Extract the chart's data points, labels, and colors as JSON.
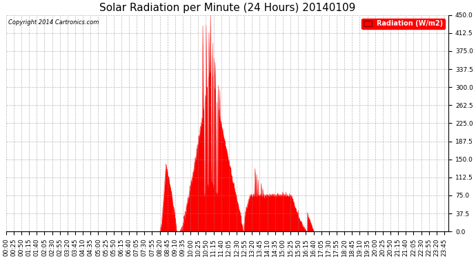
{
  "title": "Solar Radiation per Minute (24 Hours) 20140109",
  "copyright_text": "Copyright 2014 Cartronics.com",
  "legend_label": "Radiation (W/m2)",
  "fill_color": "#FF0000",
  "line_color": "#FF0000",
  "dashed_line_color": "#FF0000",
  "background_color": "#FFFFFF",
  "grid_color": "#888888",
  "title_fontsize": 11,
  "tick_fontsize": 6.5,
  "total_minutes": 1440,
  "ylim": [
    0,
    450
  ],
  "yticks": [
    0.0,
    37.5,
    75.0,
    112.5,
    150.0,
    187.5,
    225.0,
    262.5,
    300.0,
    337.5,
    375.0,
    412.5,
    450.0
  ]
}
